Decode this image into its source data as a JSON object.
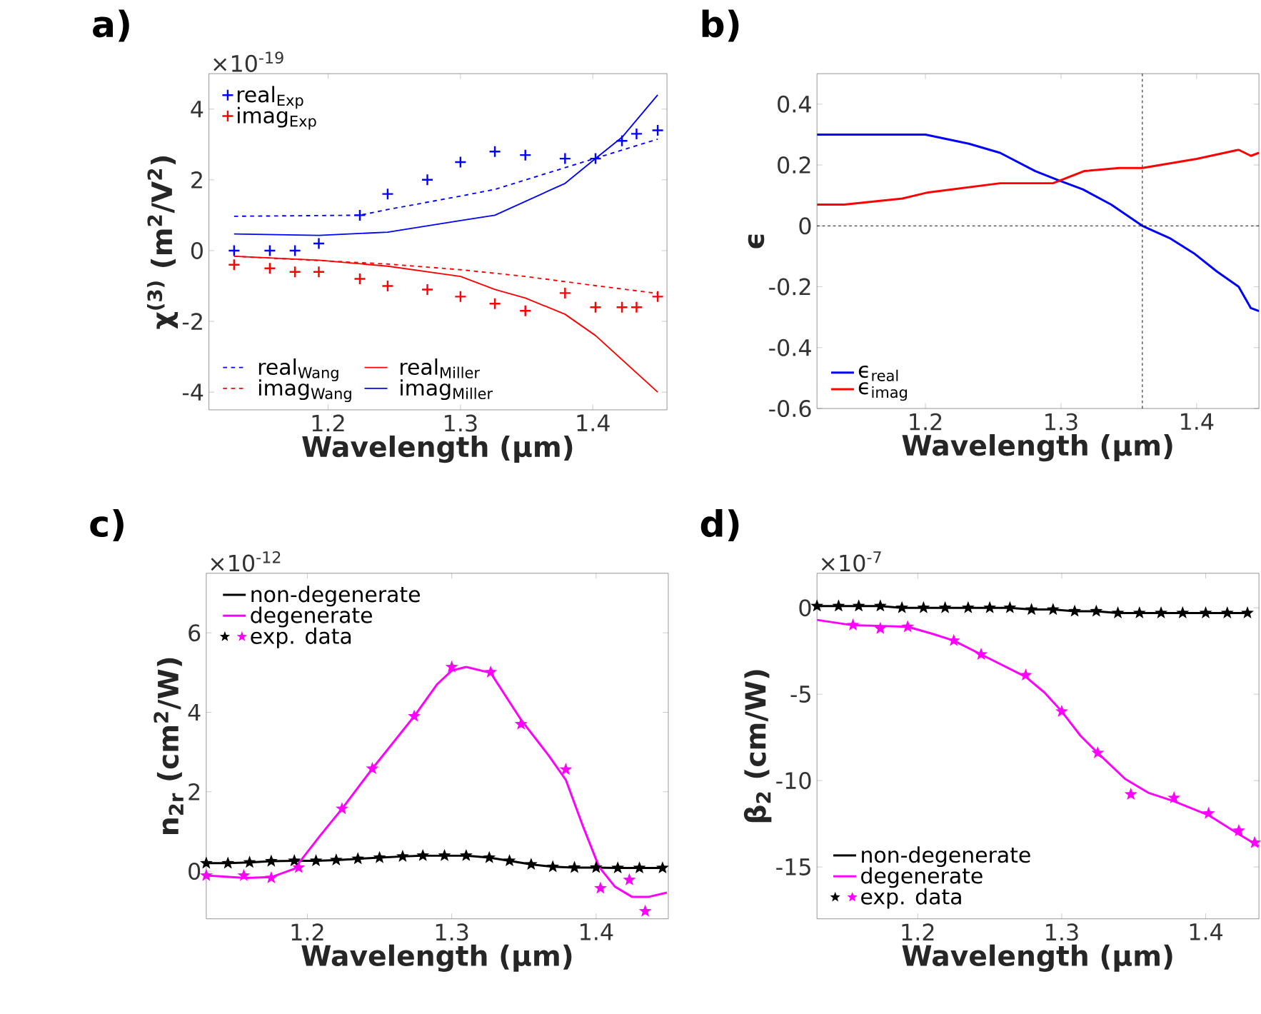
{
  "chart_data": [
    {
      "type": "line",
      "title": "a)",
      "xlabel": "Wavelength (μm)",
      "ylabel": "χ$^{(3)}$ (m$^{2}$/V$^{2}$)",
      "annotations": [
        "×10$^{-19}$"
      ],
      "xlim": [
        1.11,
        1.456
      ],
      "ylim": [
        -4.5,
        5
      ],
      "xticks": [
        1.2,
        1.3,
        1.4
      ],
      "yticks": [
        -4,
        -2,
        0,
        2,
        4
      ],
      "legend": "left",
      "series": [
        {
          "name": "real$_{Exp}$",
          "type": "scatter",
          "marker": "cross",
          "color": "#0000ff",
          "x": [
            1.129,
            1.156,
            1.175,
            1.193,
            1.224,
            1.245,
            1.275,
            1.3,
            1.326,
            1.349,
            1.379,
            1.402,
            1.422,
            1.433,
            1.449
          ],
          "values": [
            0,
            0,
            0,
            0.2,
            1.0,
            1.6,
            2.0,
            2.5,
            2.8,
            2.7,
            2.6,
            2.6,
            3.1,
            3.3,
            3.4
          ]
        },
        {
          "name": "imag$_{Exp}$",
          "type": "scatter",
          "marker": "cross",
          "color": "#ff0000",
          "x": [
            1.129,
            1.156,
            1.175,
            1.193,
            1.224,
            1.245,
            1.275,
            1.3,
            1.326,
            1.349,
            1.379,
            1.402,
            1.422,
            1.433,
            1.449
          ],
          "values": [
            -0.4,
            -0.5,
            -0.6,
            -0.6,
            -0.8,
            -1.0,
            -1.1,
            -1.3,
            -1.5,
            -1.7,
            -1.2,
            -1.6,
            -1.6,
            -1.6,
            -1.3
          ]
        },
        {
          "name": "real$_{Wang}$",
          "line_style": "dashed",
          "color": "#0000ff",
          "x": [
            1.129,
            1.224,
            1.245,
            1.3,
            1.326,
            1.402,
            1.449
          ],
          "values": [
            0.97,
            1.0,
            1.16,
            1.54,
            1.73,
            2.61,
            3.15
          ]
        },
        {
          "name": "real$_{Miller}$",
          "line_style": "solid",
          "color": "#ff0000",
          "x": [
            1.129,
            1.193,
            1.245,
            1.3,
            1.326,
            1.349,
            1.379,
            1.402,
            1.449
          ],
          "values": [
            -0.16,
            -0.27,
            -0.44,
            -0.73,
            -1.1,
            -1.34,
            -1.8,
            -2.4,
            -4.0
          ]
        },
        {
          "name": "imag$_{Wang}$",
          "line_style": "dashed",
          "color": "#ff0000",
          "x": [
            1.129,
            1.245,
            1.3,
            1.349,
            1.402,
            1.449
          ],
          "values": [
            -0.16,
            -0.38,
            -0.54,
            -0.73,
            -0.99,
            -1.21
          ]
        },
        {
          "name": "imag$_{Miller}$",
          "line_style": "solid",
          "color": "#0000ff",
          "x": [
            1.129,
            1.193,
            1.245,
            1.3,
            1.326,
            1.379,
            1.402,
            1.422,
            1.449
          ],
          "values": [
            0.47,
            0.43,
            0.52,
            0.85,
            1.0,
            1.9,
            2.6,
            3.2,
            4.4
          ]
        }
      ]
    },
    {
      "type": "line",
      "title": "b)",
      "xlabel": "Wavelength (μm)",
      "ylabel": "ϵ",
      "xlim": [
        1.12,
        1.446
      ],
      "ylim": [
        -0.6,
        0.5
      ],
      "xticks": [
        1.2,
        1.3,
        1.4
      ],
      "yticks": [
        -0.6,
        -0.4,
        -0.2,
        0,
        0.2,
        0.4
      ],
      "legend": "bottom left",
      "ref_lines": [
        {
          "axis": "x",
          "value": 1.36,
          "line_style": "dashed",
          "color": "#000000"
        },
        {
          "axis": "y",
          "value": 0,
          "line_style": "dashed",
          "color": "#000000"
        }
      ],
      "series": [
        {
          "name": "ϵ$_{real}$",
          "color": "#0000ff",
          "x": [
            1.12,
            1.14,
            1.163,
            1.183,
            1.2,
            1.232,
            1.255,
            1.281,
            1.298,
            1.316,
            1.337,
            1.36,
            1.38,
            1.398,
            1.415,
            1.431,
            1.44,
            1.446
          ],
          "values": [
            0.3,
            0.3,
            0.3,
            0.3,
            0.3,
            0.27,
            0.24,
            0.18,
            0.15,
            0.12,
            0.07,
            0,
            -0.04,
            -0.09,
            -0.15,
            -0.2,
            -0.27,
            -0.28
          ]
        },
        {
          "name": "ϵ$_{imag}$",
          "color": "#ff0000",
          "x": [
            1.12,
            1.14,
            1.183,
            1.202,
            1.255,
            1.294,
            1.317,
            1.343,
            1.36,
            1.4,
            1.431,
            1.44,
            1.446
          ],
          "values": [
            0.07,
            0.07,
            0.09,
            0.11,
            0.14,
            0.14,
            0.18,
            0.19,
            0.19,
            0.22,
            0.25,
            0.23,
            0.24
          ]
        }
      ]
    },
    {
      "type": "line",
      "title": "c)",
      "xlabel": "Wavelength (μm)",
      "ylabel": "n$_{2r}$ (cm$^{2}$/W)",
      "annotations": [
        "×10$^{-12}$"
      ],
      "xlim": [
        1.13,
        1.45
      ],
      "ylim": [
        -1.2,
        7.5
      ],
      "xticks": [
        1.2,
        1.3,
        1.4
      ],
      "yticks": [
        0,
        2,
        4,
        6
      ],
      "legend": "top left",
      "series": [
        {
          "name": "non-degenerate",
          "color": "#000000",
          "x": [
            1.13,
            1.145,
            1.16,
            1.175,
            1.191,
            1.206,
            1.22,
            1.235,
            1.25,
            1.266,
            1.28,
            1.295,
            1.31,
            1.326,
            1.34,
            1.355,
            1.37,
            1.385,
            1.4,
            1.415,
            1.43,
            1.446
          ],
          "values": [
            0.2,
            0.2,
            0.22,
            0.25,
            0.26,
            0.26,
            0.28,
            0.31,
            0.34,
            0.37,
            0.39,
            0.39,
            0.39,
            0.34,
            0.26,
            0.17,
            0.11,
            0.09,
            0.09,
            0.08,
            0.08,
            0.08
          ]
        },
        {
          "name": "degenerate",
          "color": "#ff00ff",
          "x": [
            1.13,
            1.157,
            1.175,
            1.191,
            1.209,
            1.224,
            1.245,
            1.274,
            1.29,
            1.3,
            1.31,
            1.327,
            1.348,
            1.367,
            1.379,
            1.391,
            1.402,
            1.413,
            1.425,
            1.436,
            1.449
          ],
          "values": [
            -0.11,
            -0.17,
            -0.15,
            0.06,
            0.9,
            1.57,
            2.58,
            3.9,
            4.71,
            5.05,
            5.14,
            4.99,
            3.81,
            2.92,
            2.3,
            1.12,
            0.11,
            -0.39,
            -0.65,
            -0.65,
            -0.54
          ]
        },
        {
          "type": "scatter",
          "marker": "star",
          "color": "#000000",
          "x": [
            1.13,
            1.145,
            1.16,
            1.175,
            1.191,
            1.206,
            1.22,
            1.235,
            1.25,
            1.266,
            1.28,
            1.295,
            1.31,
            1.326,
            1.34,
            1.355,
            1.37,
            1.385,
            1.4,
            1.415,
            1.43,
            1.446
          ],
          "values": [
            0.2,
            0.2,
            0.22,
            0.25,
            0.26,
            0.26,
            0.28,
            0.31,
            0.34,
            0.37,
            0.39,
            0.39,
            0.39,
            0.34,
            0.26,
            0.17,
            0.11,
            0.09,
            0.09,
            0.08,
            0.08,
            0.08
          ]
        },
        {
          "name": "exp. data",
          "type": "scatter",
          "marker": "star",
          "color": "#ff00ff",
          "x": [
            1.13,
            1.156,
            1.175,
            1.194,
            1.224,
            1.245,
            1.274,
            1.3,
            1.327,
            1.348,
            1.379,
            1.403,
            1.423,
            1.434
          ],
          "values": [
            -0.11,
            -0.11,
            -0.17,
            0.09,
            1.57,
            2.58,
            3.9,
            5.14,
            5.01,
            3.7,
            2.56,
            -0.43,
            -0.22,
            -1.01
          ]
        }
      ]
    },
    {
      "type": "line",
      "title": "d)",
      "xlabel": "Wavelength (μm)",
      "ylabel": "β$_{2}$ (cm/W)",
      "annotations": [
        "×10$^{-7}$"
      ],
      "xlim": [
        1.13,
        1.437
      ],
      "ylim": [
        -18,
        2
      ],
      "xticks": [
        1.2,
        1.3,
        1.4
      ],
      "yticks": [
        -15,
        -10,
        -5,
        0
      ],
      "legend": "bottom left",
      "series": [
        {
          "name": "non-degenerate",
          "color": "#000000",
          "x": [
            1.13,
            1.145,
            1.159,
            1.174,
            1.189,
            1.204,
            1.219,
            1.235,
            1.25,
            1.264,
            1.279,
            1.294,
            1.309,
            1.324,
            1.339,
            1.354,
            1.369,
            1.384,
            1.4,
            1.415,
            1.429
          ],
          "values": [
            0.1,
            0.1,
            0.1,
            0.1,
            0,
            0,
            0,
            0,
            0,
            0,
            -0.1,
            -0.1,
            -0.2,
            -0.2,
            -0.3,
            -0.3,
            -0.3,
            -0.3,
            -0.3,
            -0.3,
            -0.3
          ]
        },
        {
          "name": "degenerate",
          "color": "#ff00ff",
          "x": [
            1.13,
            1.154,
            1.193,
            1.21,
            1.225,
            1.244,
            1.275,
            1.288,
            1.3,
            1.313,
            1.325,
            1.344,
            1.36,
            1.378,
            1.402,
            1.423,
            1.437
          ],
          "values": [
            -0.7,
            -1.0,
            -1.1,
            -1.5,
            -1.9,
            -2.7,
            -4.0,
            -4.9,
            -6.0,
            -7.4,
            -8.4,
            -9.9,
            -10.7,
            -11.2,
            -12.0,
            -13.1,
            -13.8
          ]
        },
        {
          "type": "scatter",
          "marker": "star",
          "color": "#000000",
          "x": [
            1.13,
            1.145,
            1.159,
            1.174,
            1.189,
            1.204,
            1.219,
            1.235,
            1.25,
            1.264,
            1.279,
            1.294,
            1.309,
            1.324,
            1.339,
            1.354,
            1.369,
            1.384,
            1.4,
            1.415,
            1.429
          ],
          "values": [
            0.1,
            0.1,
            0.1,
            0.1,
            0,
            0,
            0,
            0,
            0,
            0,
            -0.1,
            -0.1,
            -0.2,
            -0.2,
            -0.3,
            -0.3,
            -0.3,
            -0.3,
            -0.3,
            -0.3,
            -0.3
          ]
        },
        {
          "name": "exp. data",
          "type": "scatter",
          "marker": "star",
          "color": "#ff00ff",
          "x": [
            1.155,
            1.174,
            1.193,
            1.225,
            1.244,
            1.275,
            1.3,
            1.325,
            1.348,
            1.378,
            1.402,
            1.423,
            1.434
          ],
          "values": [
            -1.0,
            -1.2,
            -1.1,
            -1.9,
            -2.7,
            -3.9,
            -6.0,
            -8.4,
            -10.8,
            -11.0,
            -11.9,
            -12.9,
            -13.6
          ]
        }
      ]
    }
  ]
}
